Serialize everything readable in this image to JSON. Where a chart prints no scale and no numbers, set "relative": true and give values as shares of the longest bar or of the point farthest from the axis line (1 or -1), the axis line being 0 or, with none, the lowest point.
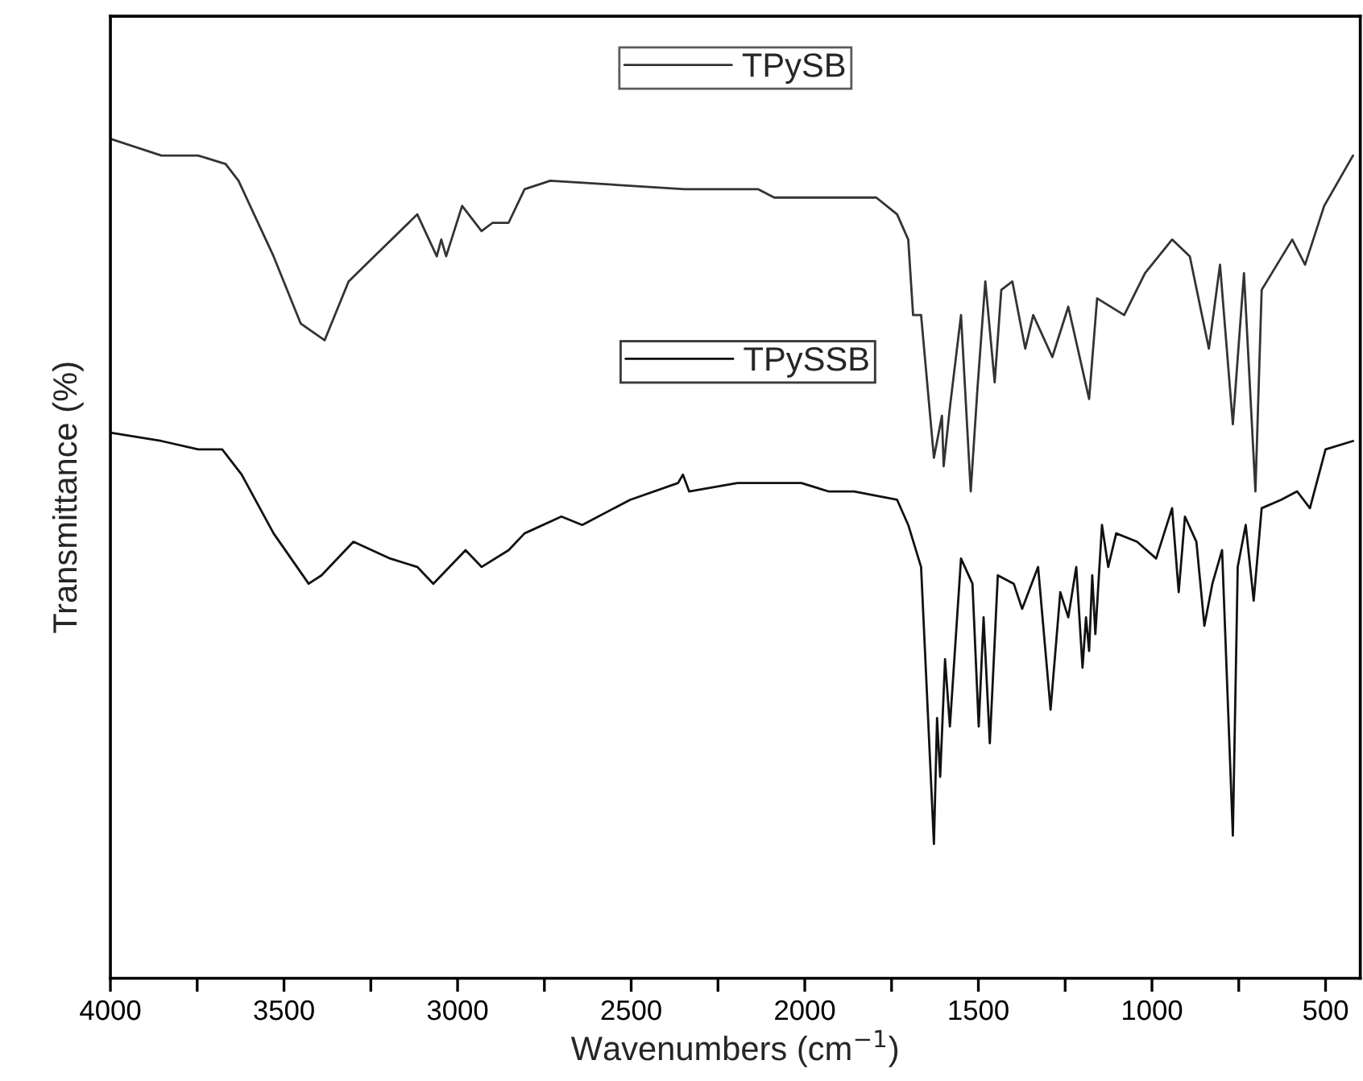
{
  "chart_data": {
    "type": "line",
    "relative": true,
    "xlabel": "Wavenumbers (cm$^{−1}$)",
    "ylabel": "Transmittance (%)",
    "xlim": [
      4000,
      400
    ],
    "xticks": [
      4000,
      {
        "value": 3750,
        "label": null
      },
      3500,
      {
        "value": 3250,
        "label": null
      },
      3000,
      {
        "value": 2750,
        "label": null
      },
      2500,
      {
        "value": 2250,
        "label": null
      },
      2000,
      {
        "value": 1750,
        "label": null
      },
      1500,
      {
        "value": 1250,
        "label": null
      },
      1000,
      {
        "value": 750,
        "label": null
      },
      500
    ],
    "grid": false,
    "legend": "top",
    "tick_labels": "x",
    "line_style": "solid",
    "marker": "none",
    "series": [
      {
        "name": "TPySB",
        "color": "#333333",
        "x": [
          4000,
          3853,
          3747,
          3668,
          3631,
          3530,
          3452,
          3383,
          3314,
          3240,
          3116,
          3060,
          3047,
          3033,
          2987,
          2931,
          2899,
          2853,
          2807,
          2733,
          2346,
          2135,
          2088,
          1794,
          1734,
          1702,
          1688,
          1665,
          1628,
          1605,
          1600,
          1582,
          1550,
          1522,
          1503,
          1480,
          1453,
          1434,
          1402,
          1365,
          1342,
          1287,
          1241,
          1181,
          1158,
          1080,
          1020,
          942,
          891,
          836,
          804,
          767,
          735,
          702,
          684,
          596,
          559,
          504,
          421
        ],
        "values": [
          1.0,
          0.98,
          0.98,
          0.97,
          0.95,
          0.86,
          0.78,
          0.76,
          0.83,
          0.86,
          0.91,
          0.86,
          0.88,
          0.86,
          0.92,
          0.89,
          0.9,
          0.9,
          0.94,
          0.95,
          0.94,
          0.94,
          0.93,
          0.93,
          0.91,
          0.88,
          0.79,
          0.79,
          0.62,
          0.67,
          0.61,
          0.68,
          0.79,
          0.58,
          0.7,
          0.83,
          0.71,
          0.82,
          0.83,
          0.75,
          0.79,
          0.74,
          0.8,
          0.69,
          0.81,
          0.79,
          0.84,
          0.88,
          0.86,
          0.75,
          0.85,
          0.66,
          0.84,
          0.58,
          0.82,
          0.88,
          0.85,
          0.92,
          0.98
        ]
      },
      {
        "name": "TPySSB",
        "color": "#111111",
        "x": [
          4000,
          3853,
          3747,
          3678,
          3622,
          3530,
          3429,
          3392,
          3300,
          3194,
          3116,
          3070,
          2977,
          2931,
          2853,
          2807,
          2701,
          2641,
          2503,
          2365,
          2351,
          2333,
          2194,
          2010,
          1932,
          1858,
          1734,
          1702,
          1665,
          1628,
          1619,
          1610,
          1596,
          1582,
          1550,
          1517,
          1499,
          1485,
          1467,
          1444,
          1398,
          1374,
          1328,
          1292,
          1264,
          1241,
          1218,
          1200,
          1190,
          1181,
          1172,
          1163,
          1144,
          1126,
          1103,
          1043,
          988,
          942,
          923,
          905,
          872,
          849,
          826,
          798,
          767,
          753,
          730,
          707,
          684,
          628,
          582,
          545,
          500,
          421
        ],
        "values": [
          0.65,
          0.64,
          0.63,
          0.63,
          0.6,
          0.53,
          0.47,
          0.48,
          0.52,
          0.5,
          0.49,
          0.47,
          0.51,
          0.49,
          0.51,
          0.53,
          0.55,
          0.54,
          0.57,
          0.59,
          0.6,
          0.58,
          0.59,
          0.59,
          0.58,
          0.58,
          0.57,
          0.54,
          0.49,
          0.16,
          0.31,
          0.24,
          0.38,
          0.3,
          0.5,
          0.47,
          0.3,
          0.43,
          0.28,
          0.48,
          0.47,
          0.44,
          0.49,
          0.32,
          0.46,
          0.43,
          0.49,
          0.37,
          0.43,
          0.39,
          0.48,
          0.41,
          0.54,
          0.49,
          0.53,
          0.52,
          0.5,
          0.56,
          0.46,
          0.55,
          0.52,
          0.42,
          0.47,
          0.51,
          0.17,
          0.49,
          0.54,
          0.45,
          0.56,
          0.57,
          0.58,
          0.56,
          0.63,
          0.64
        ]
      }
    ]
  }
}
